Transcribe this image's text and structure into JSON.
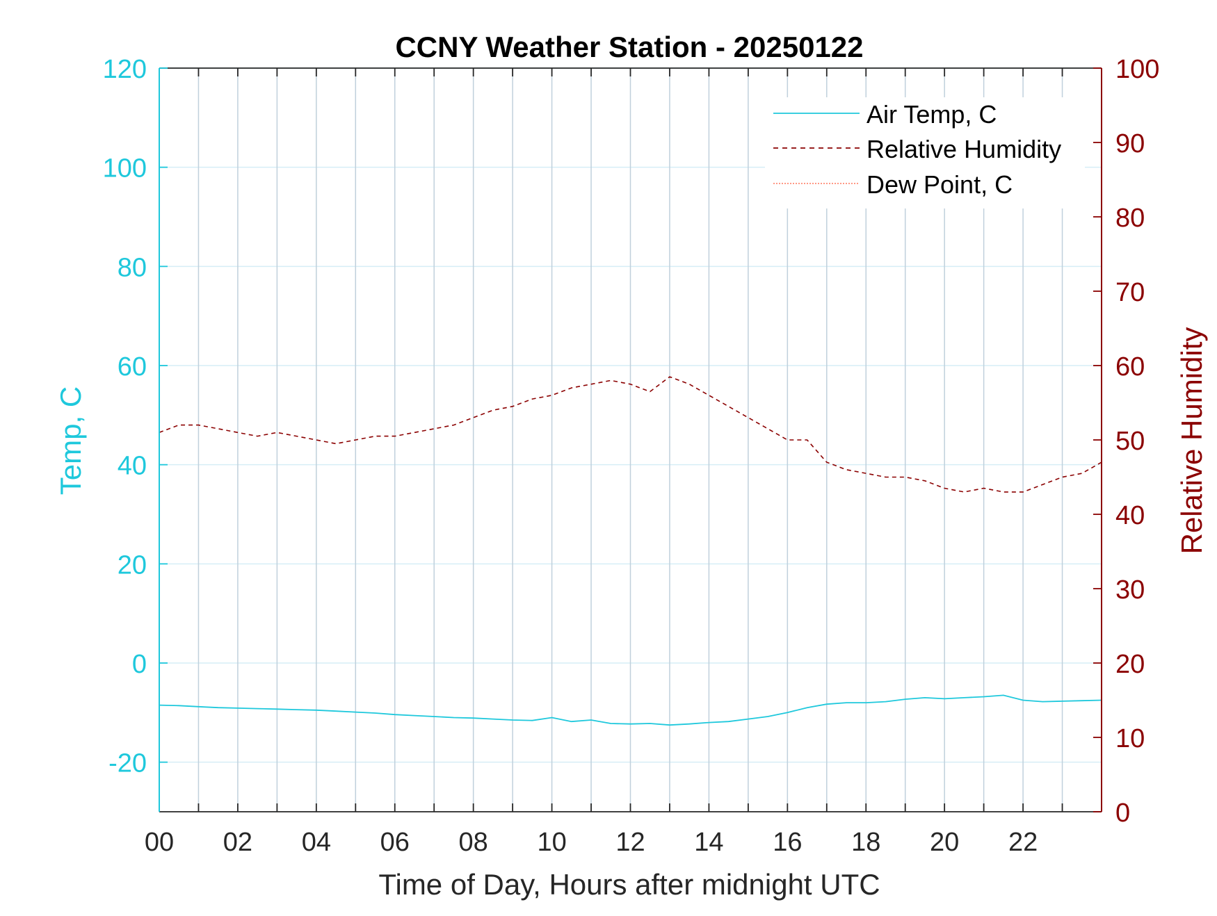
{
  "chart_data": {
    "type": "line",
    "title": "CCNY Weather Station - 20250122",
    "xlabel": "Time of Day, Hours after midnight UTC",
    "ylabel_left": "Temp, C",
    "ylabel_right": "Relative Humidity",
    "xlim": [
      0,
      24
    ],
    "ylim_left": [
      -30,
      120
    ],
    "ylim_right": [
      0,
      100
    ],
    "x_ticks": [
      "00",
      "02",
      "04",
      "06",
      "08",
      "10",
      "12",
      "14",
      "16",
      "18",
      "20",
      "22"
    ],
    "y_ticks_left": [
      "-20",
      "0",
      "20",
      "40",
      "60",
      "80",
      "100",
      "120"
    ],
    "y_ticks_right": [
      "0",
      "10",
      "20",
      "30",
      "40",
      "50",
      "60",
      "70",
      "80",
      "90",
      "100"
    ],
    "grid": true,
    "legend_position": "top-right",
    "legend": [
      "Air Temp, C",
      "Relative Humidity",
      "Dew Point, C"
    ],
    "colors": {
      "temp": "#1ec8dc",
      "humidity": "#8b0000",
      "dew_point": "#ff5a3c",
      "axis_left": "#1ec8dc",
      "axis_right": "#8b0000",
      "grid": "#c0d0dc",
      "frame": "#262626"
    },
    "series": [
      {
        "name": "Air Temp, C",
        "axis": "left",
        "style": "solid",
        "x": [
          0,
          0.5,
          1,
          1.5,
          2,
          2.5,
          3,
          3.5,
          4,
          4.5,
          5,
          5.5,
          6,
          6.5,
          7,
          7.5,
          8,
          8.5,
          9,
          9.5,
          10,
          10.5,
          11,
          11.5,
          12,
          12.5,
          13,
          13.5,
          14,
          14.5,
          15,
          15.5,
          16,
          16.5,
          17,
          17.5,
          18,
          18.5,
          19,
          19.5,
          20,
          20.5,
          21,
          21.5,
          22,
          22.5,
          23,
          23.5,
          24
        ],
        "values": [
          -8.5,
          -8.6,
          -8.8,
          -9.0,
          -9.1,
          -9.2,
          -9.3,
          -9.4,
          -9.5,
          -9.7,
          -9.9,
          -10.1,
          -10.4,
          -10.6,
          -10.8,
          -11.0,
          -11.1,
          -11.3,
          -11.5,
          -11.6,
          -11.0,
          -11.8,
          -11.5,
          -12.2,
          -12.3,
          -12.2,
          -12.5,
          -12.3,
          -12.0,
          -11.8,
          -11.3,
          -10.8,
          -10.0,
          -9.0,
          -8.3,
          -8.0,
          -8.0,
          -7.8,
          -7.3,
          -7.0,
          -7.2,
          -7.0,
          -6.8,
          -6.5,
          -7.5,
          -7.8,
          -7.7,
          -7.6,
          -7.5
        ]
      },
      {
        "name": "Relative Humidity",
        "axis": "right",
        "style": "dashed",
        "x": [
          0,
          0.5,
          1,
          1.5,
          2,
          2.5,
          3,
          3.5,
          4,
          4.5,
          5,
          5.5,
          6,
          6.5,
          7,
          7.5,
          8,
          8.5,
          9,
          9.5,
          10,
          10.5,
          11,
          11.5,
          12,
          12.5,
          13,
          13.5,
          14,
          14.5,
          15,
          15.5,
          16,
          16.5,
          17,
          17.5,
          18,
          18.5,
          19,
          19.5,
          20,
          20.5,
          21,
          21.5,
          22,
          22.5,
          23,
          23.5,
          24
        ],
        "values": [
          51,
          52,
          52,
          51.5,
          51,
          50.5,
          51,
          50.5,
          50,
          49.5,
          50,
          50.5,
          50.5,
          51,
          51.5,
          52,
          53,
          54,
          54.5,
          55.5,
          56,
          57,
          57.5,
          58,
          57.5,
          56.5,
          58.5,
          57.5,
          56,
          54.5,
          53,
          51.5,
          50,
          50,
          47,
          46,
          45.5,
          45,
          45,
          44.5,
          43.5,
          43,
          43.5,
          43,
          43,
          44,
          45,
          45.5,
          47
        ]
      },
      {
        "name": "Dew Point, C",
        "axis": "left",
        "style": "dotted",
        "x": [],
        "values": []
      }
    ]
  }
}
